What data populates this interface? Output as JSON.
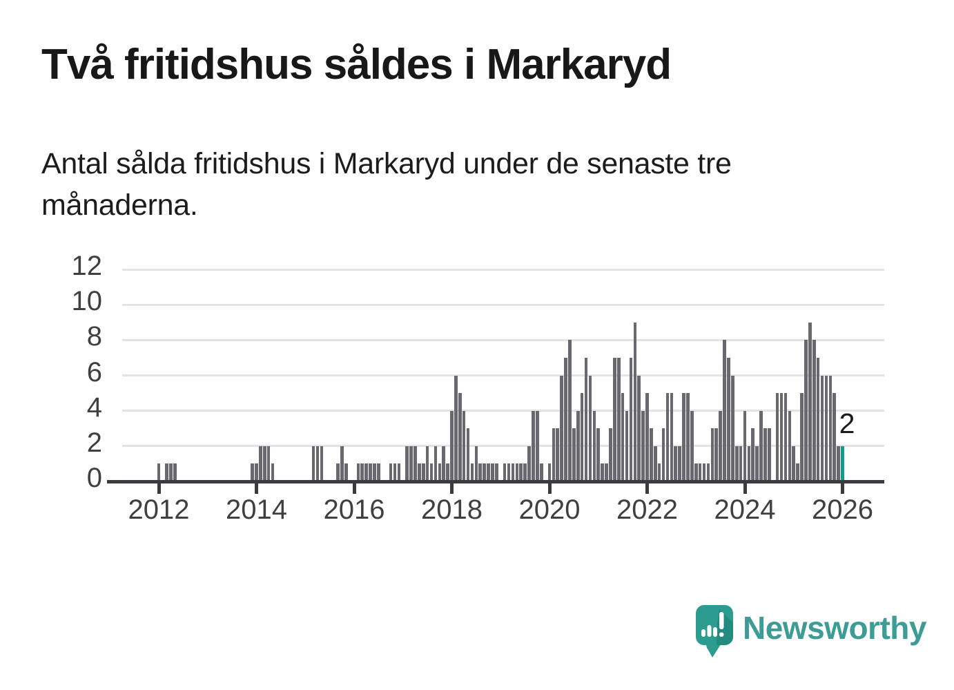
{
  "header": {
    "title": "Två fritidshus såldes i Markaryd",
    "subtitle_line1": "Antal sålda fritidshus i Markaryd under de senaste tre",
    "subtitle_line2": "månaderna."
  },
  "chart_data": {
    "type": "bar",
    "title": "Antal sålda fritidshus i Markaryd under de senaste tre månaderna",
    "x_start_month": "2011-01",
    "x_last_data_month": "2026-01",
    "yticks": [
      0,
      2,
      4,
      6,
      8,
      10,
      12
    ],
    "ylim": [
      0,
      12
    ],
    "xticks": [
      "2012",
      "2014",
      "2016",
      "2018",
      "2020",
      "2022",
      "2024",
      "2026"
    ],
    "grid": true,
    "legend": "none",
    "bar_color": "#68686e",
    "highlight_color": "#0f9b8e",
    "axis_color": "#3a3a40",
    "gridline_color": "#e3e3e5",
    "tick_label_color": "#3f3f3f",
    "highlight_value_label": "2",
    "series_by_year": {
      "2011": [
        0,
        0,
        0,
        0,
        0,
        0,
        0,
        0,
        0,
        0,
        0,
        0
      ],
      "2012": [
        1,
        0,
        1,
        1,
        1,
        0,
        0,
        0,
        0,
        0,
        0,
        0
      ],
      "2013": [
        0,
        0,
        0,
        0,
        0,
        0,
        0,
        0,
        0,
        0,
        0,
        1
      ],
      "2014": [
        1,
        2,
        2,
        2,
        1,
        0,
        0,
        0,
        0,
        0,
        0,
        0
      ],
      "2015": [
        0,
        0,
        2,
        2,
        2,
        0,
        0,
        0,
        1,
        2,
        1,
        0
      ],
      "2016": [
        0,
        1,
        1,
        1,
        1,
        1,
        1,
        0,
        0,
        1,
        1,
        1
      ],
      "2017": [
        0,
        2,
        2,
        2,
        1,
        1,
        2,
        1,
        2,
        1,
        2,
        1
      ],
      "2018": [
        4,
        6,
        5,
        4,
        3,
        1,
        2,
        1,
        1,
        1,
        1,
        1
      ],
      "2019": [
        0,
        1,
        1,
        1,
        1,
        1,
        1,
        2,
        4,
        4,
        1,
        0
      ],
      "2020": [
        1,
        3,
        3,
        6,
        7,
        8,
        3,
        4,
        5,
        7,
        6,
        4
      ],
      "2021": [
        3,
        1,
        1,
        3,
        7,
        7,
        5,
        4,
        7,
        9,
        6,
        4
      ],
      "2022": [
        5,
        3,
        2,
        1,
        3,
        5,
        5,
        2,
        2,
        5,
        5,
        4
      ],
      "2023": [
        1,
        1,
        1,
        1,
        3,
        3,
        4,
        8,
        7,
        6,
        2,
        2
      ],
      "2024": [
        4,
        2,
        3,
        2,
        4,
        3,
        3,
        0,
        5,
        5,
        5,
        4
      ],
      "2025": [
        2,
        1,
        5,
        8,
        9,
        8,
        7,
        6,
        6,
        6,
        5,
        2
      ],
      "2026": [
        2
      ]
    }
  },
  "footer": {
    "brand": "Newsworthy",
    "brand_color": "#3e9c96",
    "logo_icon": "speech-bubble-bar-chart-icon"
  }
}
